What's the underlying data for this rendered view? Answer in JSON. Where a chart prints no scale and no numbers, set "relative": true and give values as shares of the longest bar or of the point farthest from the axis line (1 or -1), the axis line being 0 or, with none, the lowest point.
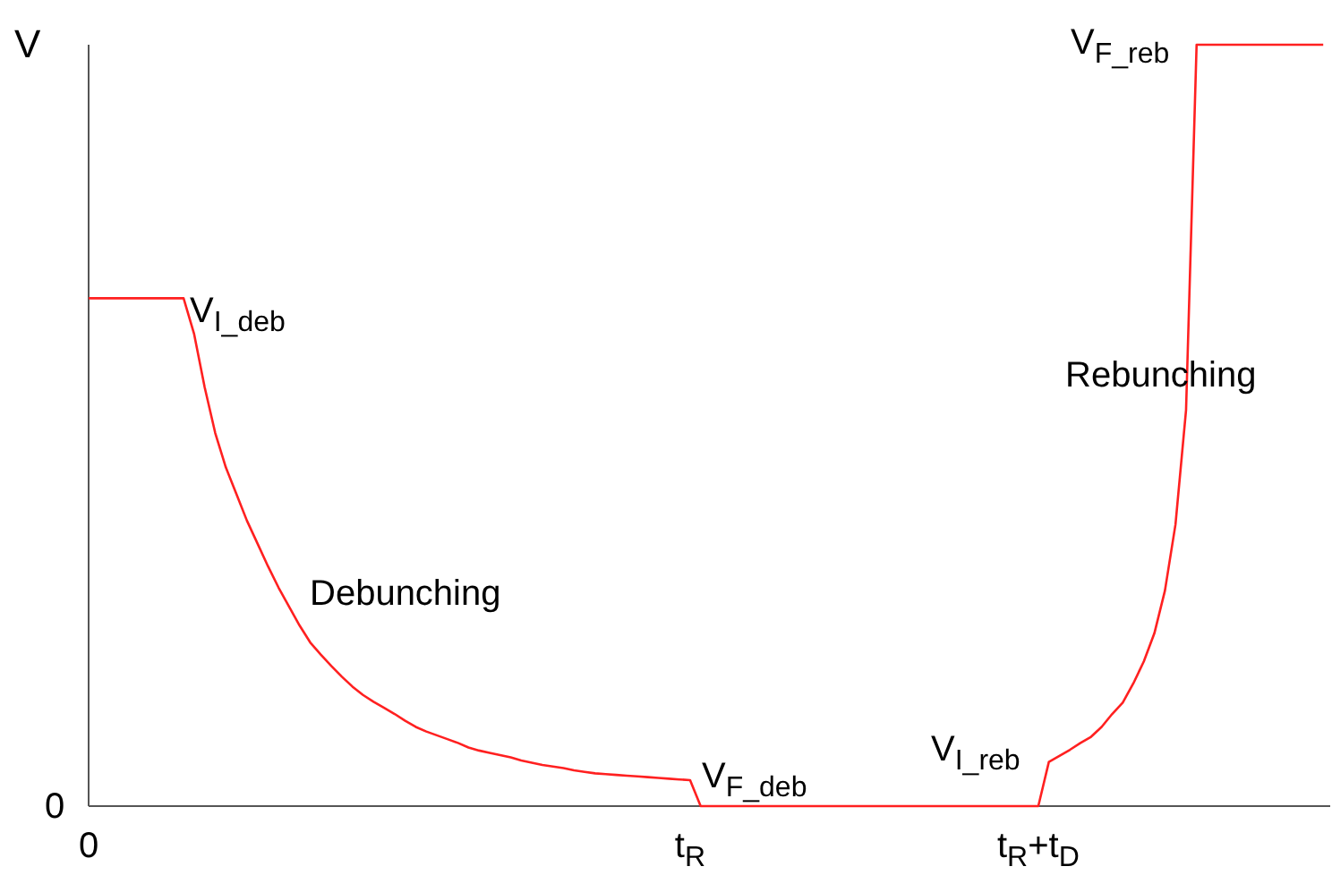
{
  "chart_data": {
    "type": "line",
    "relative": true,
    "categories": [
      "0",
      null,
      null,
      null,
      null,
      null,
      null,
      null,
      null,
      null,
      null,
      null,
      null,
      null,
      null,
      null,
      null,
      null,
      null,
      null,
      null,
      null,
      null,
      null,
      null,
      null,
      null,
      null,
      null,
      null,
      null,
      null,
      null,
      null,
      null,
      null,
      null,
      null,
      null,
      null,
      null,
      null,
      null,
      null,
      null,
      null,
      null,
      null,
      null,
      null,
      null,
      null,
      null,
      null,
      null,
      null,
      null,
      "t$_{R}$",
      null,
      null,
      null,
      null,
      null,
      null,
      null,
      null,
      null,
      null,
      null,
      null,
      null,
      null,
      null,
      null,
      null,
      null,
      null,
      null,
      null,
      null,
      null,
      null,
      null,
      null,
      null,
      null,
      null,
      null,
      null,
      null,
      "t$_{R}$+t$_{D}$",
      null,
      null,
      null,
      null,
      null,
      null,
      null,
      null,
      null,
      null,
      null,
      null,
      null,
      null,
      null,
      null,
      null,
      null,
      null,
      null,
      null,
      null,
      null,
      null,
      null,
      null,
      null
    ],
    "series": [
      {
        "color": "#ff2020",
        "values": [
          0.667,
          0.667,
          0.667,
          0.667,
          0.667,
          0.667,
          0.667,
          0.667,
          0.667,
          0.667,
          0.62,
          0.55,
          0.49,
          0.445,
          0.41,
          0.375,
          0.345,
          0.315,
          0.287,
          0.262,
          0.237,
          0.215,
          0.199,
          0.184,
          0.17,
          0.157,
          0.146,
          0.137,
          0.129,
          0.121,
          0.112,
          0.104,
          0.098,
          0.093,
          0.088,
          0.083,
          0.077,
          0.073,
          0.07,
          0.067,
          0.064,
          0.06,
          0.057,
          0.054,
          0.052,
          0.05,
          0.047,
          0.045,
          0.043,
          0.042,
          0.041,
          0.04,
          0.039,
          0.038,
          0.037,
          0.036,
          0.035,
          0.034,
          0,
          0,
          0,
          0,
          0,
          0,
          0,
          0,
          0,
          0,
          0,
          0,
          0,
          0,
          0,
          0,
          0,
          0,
          0,
          0,
          0,
          0,
          0,
          0,
          0,
          0,
          0,
          0,
          0,
          0,
          0,
          0,
          0,
          0.058,
          0.066,
          0.074,
          0.083,
          0.091,
          0.104,
          0.121,
          0.136,
          0.161,
          0.19,
          0.227,
          0.283,
          0.37,
          0.52,
          1,
          1,
          1,
          1,
          1,
          1,
          1,
          1,
          1,
          1,
          1,
          1,
          1
        ]
      }
    ],
    "ylabel": "V",
    "line_style": "solid",
    "annotations": [
      "V$_{I_deb}$",
      "V$_{F_deb}$",
      "V$_{I_reb}$",
      "V$_{F_reb}$",
      "Debunching",
      "Rebunching",
      "0"
    ]
  }
}
